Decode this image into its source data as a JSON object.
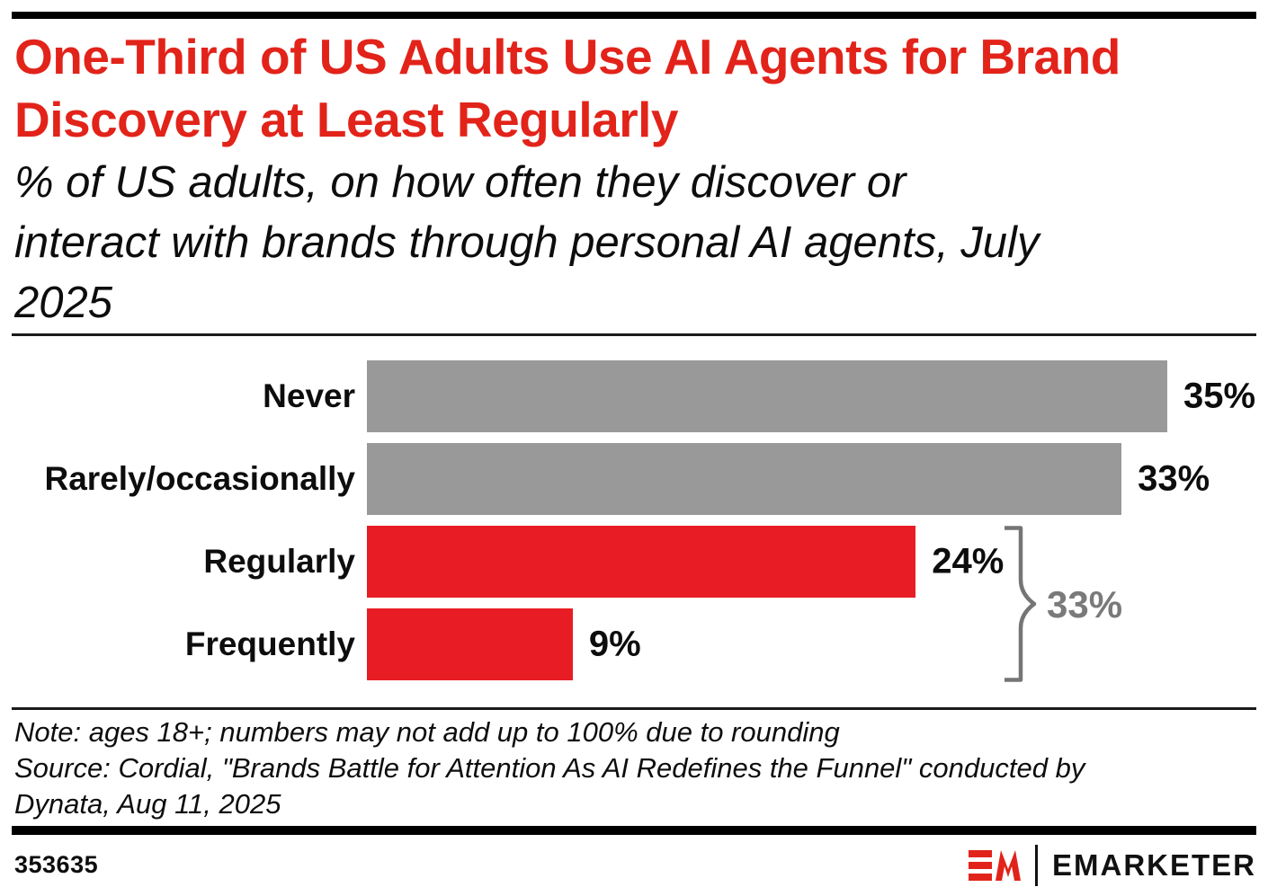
{
  "page": {
    "background": "#ffffff"
  },
  "header": {
    "title_lines": [
      "One-Third of US Adults Use AI Agents for Brand",
      "Discovery at Least Regularly"
    ],
    "title_color": "#e2231a",
    "subtitle_lines": [
      "% of US adults, on how often they discover or",
      "interact with brands through personal AI agents, July",
      "2025"
    ]
  },
  "chart_data": {
    "type": "bar",
    "orientation": "horizontal",
    "title": "One-Third of US Adults Use AI Agents for Brand Discovery at Least Regularly",
    "subtitle": "% of US adults, on how often they discover or interact with brands through personal AI agents, July 2025",
    "categories": [
      "Never",
      "Rarely/occasionally",
      "Regularly",
      "Frequently"
    ],
    "values": [
      35,
      33,
      24,
      9
    ],
    "value_labels": [
      "35%",
      "33%",
      "24%",
      "9%"
    ],
    "bar_colors": [
      "#999999",
      "#999999",
      "#e81c24",
      "#e81c24"
    ],
    "xmax": 35,
    "grid": false,
    "legend": false,
    "group_annotation": {
      "label": "33%",
      "first_row": 2,
      "last_row": 3,
      "color": "#7a7a7a"
    }
  },
  "footnote": {
    "note": "Note: ages 18+; numbers may not add up to 100% due to rounding",
    "source_lines": [
      "Source: Cordial, \"Brands Battle for Attention As AI Redefines the Funnel\" conducted by",
      "Dynata, Aug 11, 2025"
    ]
  },
  "footer": {
    "chart_id": "353635",
    "brand": "EMARKETER",
    "brand_color": "#e2231a"
  }
}
